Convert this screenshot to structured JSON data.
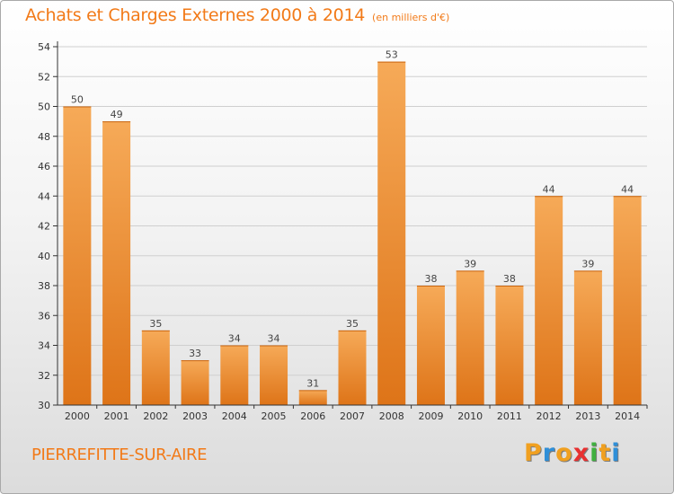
{
  "title": "Achats et Charges Externes 2000 à 2014",
  "unit_note": "(en milliers d'€)",
  "commune": "PIERREFITTE-SUR-AIRE",
  "brand": {
    "letters": [
      "P",
      "r",
      "o",
      "x",
      "i",
      "t",
      "i"
    ],
    "colors": [
      "#f0a020",
      "#2f8fd8",
      "#f0a020",
      "#e83030",
      "#40b040",
      "#f0a020",
      "#2f8fd8"
    ]
  },
  "colors": {
    "accent": "#f27a18",
    "bar_top": "#f6aa58",
    "bar_bottom": "#de7418",
    "axis": "#333333",
    "grid": "#cfcfcf"
  },
  "chart_data": {
    "type": "bar",
    "categories": [
      "2000",
      "2001",
      "2002",
      "2003",
      "2004",
      "2005",
      "2006",
      "2007",
      "2008",
      "2009",
      "2010",
      "2011",
      "2012",
      "2013",
      "2014"
    ],
    "values": [
      50,
      49,
      35,
      33,
      34,
      34,
      31,
      35,
      53,
      38,
      39,
      38,
      44,
      39,
      44
    ],
    "data_labels": [
      "50",
      "49",
      "35",
      "33",
      "34",
      "34",
      "31",
      "35",
      "53",
      "38",
      "39",
      "38",
      "44",
      "39",
      "44"
    ],
    "ylim": [
      30,
      54
    ],
    "yticks": [
      30,
      32,
      34,
      36,
      38,
      40,
      42,
      44,
      46,
      48,
      50,
      52,
      54
    ],
    "ytick_labels": [
      "30",
      "32",
      "34",
      "36",
      "38",
      "40",
      "42",
      "44",
      "46",
      "48",
      "50",
      "52",
      "54"
    ],
    "title": "Achats et Charges Externes 2000 à 2014",
    "xlabel": "",
    "ylabel": "",
    "grid": true,
    "legend": "none"
  }
}
